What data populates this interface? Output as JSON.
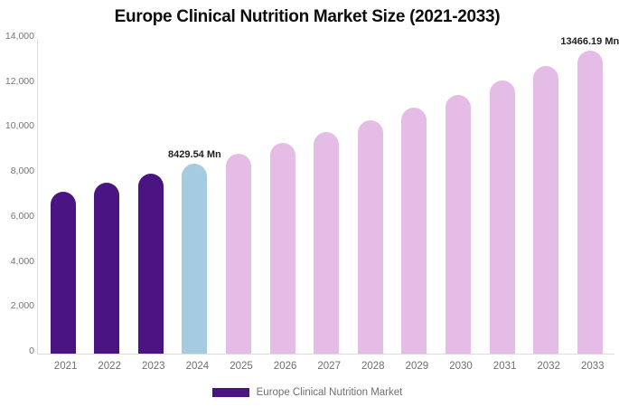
{
  "chart_data": {
    "type": "bar",
    "title": "Europe Clinical Nutrition Market Size (2021-2033)",
    "unit": "Mn",
    "categories": [
      "2021",
      "2022",
      "2023",
      "2024",
      "2025",
      "2026",
      "2027",
      "2028",
      "2029",
      "2030",
      "2031",
      "2032",
      "2033"
    ],
    "values": [
      7211,
      7596,
      8002,
      8429.54,
      8880,
      9354,
      9853,
      10380,
      10934,
      11518,
      12133,
      12781,
      13466.19
    ],
    "bar_color_roles": [
      "historical",
      "historical",
      "historical",
      "base",
      "forecast",
      "forecast",
      "forecast",
      "forecast",
      "forecast",
      "forecast",
      "forecast",
      "forecast",
      "forecast"
    ],
    "palette": {
      "historical": "#4A1582",
      "base": "#A5CBE1",
      "forecast": "#E5BCE6"
    },
    "xlabel": "",
    "ylabel": "",
    "ylim": [
      0,
      14000
    ],
    "ytick_step": 2000,
    "ytick_labels": [
      "0",
      "2,000",
      "4,000",
      "6,000",
      "8,000",
      "10,000",
      "12,000",
      "14,000"
    ],
    "grid": false,
    "annotations": [
      {
        "category": "2024",
        "text": "8429.54 Mn"
      },
      {
        "category": "2033",
        "text": "13466.19 Mn"
      }
    ],
    "legend": {
      "position": "bottom",
      "entries": [
        {
          "label": "Europe Clinical Nutrition Market",
          "color": "#4A1582"
        }
      ]
    },
    "axis_color": "#dcdcdc",
    "tick_text_color": "#757575"
  }
}
